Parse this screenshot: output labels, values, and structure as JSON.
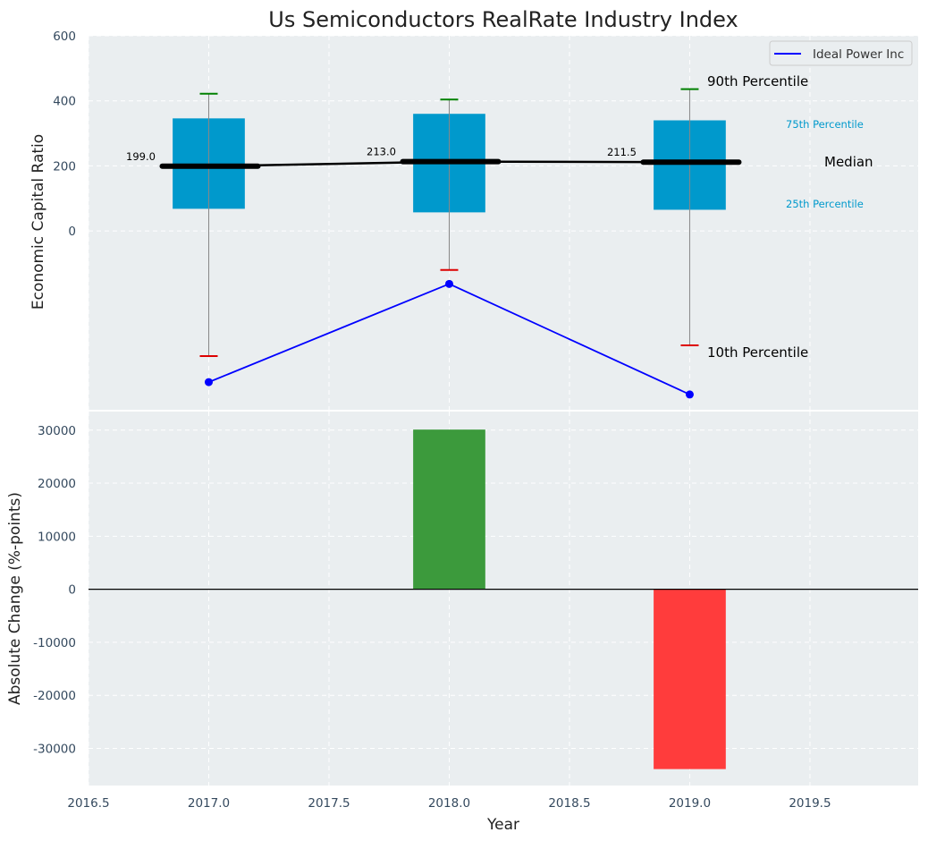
{
  "chart_data": [
    {
      "type": "box",
      "title": "Us Semiconductors RealRate Industry Index",
      "ylabel": "Economic Capital Ratio",
      "xlim": [
        2016.5,
        2019.95
      ],
      "ylim": [
        -550,
        600
      ],
      "yticks": [
        0,
        200,
        400,
        600
      ],
      "grid": true,
      "years": [
        2017,
        2018,
        2019
      ],
      "boxes": [
        {
          "year": 2017,
          "p10": -385,
          "p25": 68,
          "median": 199.0,
          "p75": 346,
          "p90": 422,
          "median_label": "199.0"
        },
        {
          "year": 2018,
          "p10": -120,
          "p25": 57,
          "median": 213.0,
          "p75": 360,
          "p90": 404,
          "median_label": "213.0"
        },
        {
          "year": 2019,
          "p10": -352,
          "p25": 65,
          "median": 211.5,
          "p75": 340,
          "p90": 436,
          "median_label": "211.5"
        }
      ],
      "series": [
        {
          "name": "Ideal Power Inc",
          "color": "#0000ff",
          "x": [
            2017,
            2018,
            2019
          ],
          "values": [
            -465,
            -163,
            -503
          ]
        }
      ],
      "legend": {
        "position": "top-right",
        "entries": [
          "Ideal Power Inc"
        ]
      },
      "annotations": {
        "p90": "90th Percentile",
        "p75": "75th Percentile",
        "median": "Median",
        "p25": "25th Percentile",
        "p10": "10th Percentile"
      },
      "colors": {
        "box": "#0099cc",
        "whisker_high": "#008000",
        "whisker_low": "#dd0000",
        "median": "#000000",
        "background": "#eaeef0"
      }
    },
    {
      "type": "bar",
      "xlabel": "Year",
      "ylabel": "Absolute Change (%-points)",
      "xlim": [
        2016.5,
        2019.95
      ],
      "ylim": [
        -37000,
        33500
      ],
      "yticks": [
        -30000,
        -20000,
        -10000,
        0,
        10000,
        20000,
        30000
      ],
      "xticks": [
        "2016.5",
        "2017.0",
        "2017.5",
        "2018.0",
        "2018.5",
        "2019.0",
        "2019.5"
      ],
      "grid": true,
      "bars": [
        {
          "year": 2018,
          "value": 30100,
          "color": "#3c9a3c"
        },
        {
          "year": 2019,
          "value": -33900,
          "color": "#ff3c3c"
        }
      ]
    }
  ]
}
